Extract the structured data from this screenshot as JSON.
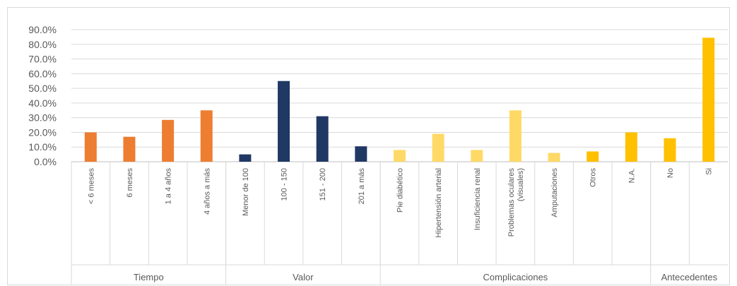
{
  "chart_data": {
    "type": "bar",
    "ylim": [
      0,
      90
    ],
    "yticks": [
      "0.0%",
      "10.0%",
      "20.0%",
      "30.0%",
      "40.0%",
      "50.0%",
      "60.0%",
      "70.0%",
      "80.0%",
      "90.0%"
    ],
    "grid": true,
    "groups": [
      {
        "name": "Tiempo",
        "categories": [
          {
            "label": [
              "< 6 meses"
            ],
            "value": 20,
            "color": "#ed7d31"
          },
          {
            "label": [
              "6 meses"
            ],
            "value": 17,
            "color": "#ed7d31"
          },
          {
            "label": [
              "1 a 4 años"
            ],
            "value": 28.5,
            "color": "#ed7d31"
          },
          {
            "label": [
              "4 años a más"
            ],
            "value": 35,
            "color": "#ed7d31"
          }
        ]
      },
      {
        "name": "Valor",
        "categories": [
          {
            "label": [
              "Menor de 100"
            ],
            "value": 5,
            "color": "#203864"
          },
          {
            "label": [
              "100 - 150"
            ],
            "value": 55,
            "color": "#203864"
          },
          {
            "label": [
              "151 - 200"
            ],
            "value": 31,
            "color": "#203864"
          },
          {
            "label": [
              "201 a más"
            ],
            "value": 10.5,
            "color": "#203864"
          }
        ]
      },
      {
        "name": "Complicaciones",
        "categories": [
          {
            "label": [
              "Pie diabético"
            ],
            "value": 8,
            "color": "#ffd966"
          },
          {
            "label": [
              "Hipertensión arterial"
            ],
            "value": 19,
            "color": "#ffd966"
          },
          {
            "label": [
              "Insuficiencia renal"
            ],
            "value": 8,
            "color": "#ffd966"
          },
          {
            "label": [
              "Problemas oculares",
              "(visuales)"
            ],
            "value": 35,
            "color": "#ffd966"
          },
          {
            "label": [
              "Amputaciones"
            ],
            "value": 6,
            "color": "#ffd966"
          },
          {
            "label": [
              "Otros"
            ],
            "value": 7,
            "color": "#ffc000"
          },
          {
            "label": [
              "N.A."
            ],
            "value": 20,
            "color": "#ffc000"
          }
        ]
      },
      {
        "name": "Antecedentes",
        "categories": [
          {
            "label": [
              "No"
            ],
            "value": 16,
            "color": "#ffc000"
          },
          {
            "label": [
              "Si"
            ],
            "value": 84.5,
            "color": "#ffc000"
          }
        ]
      }
    ]
  }
}
